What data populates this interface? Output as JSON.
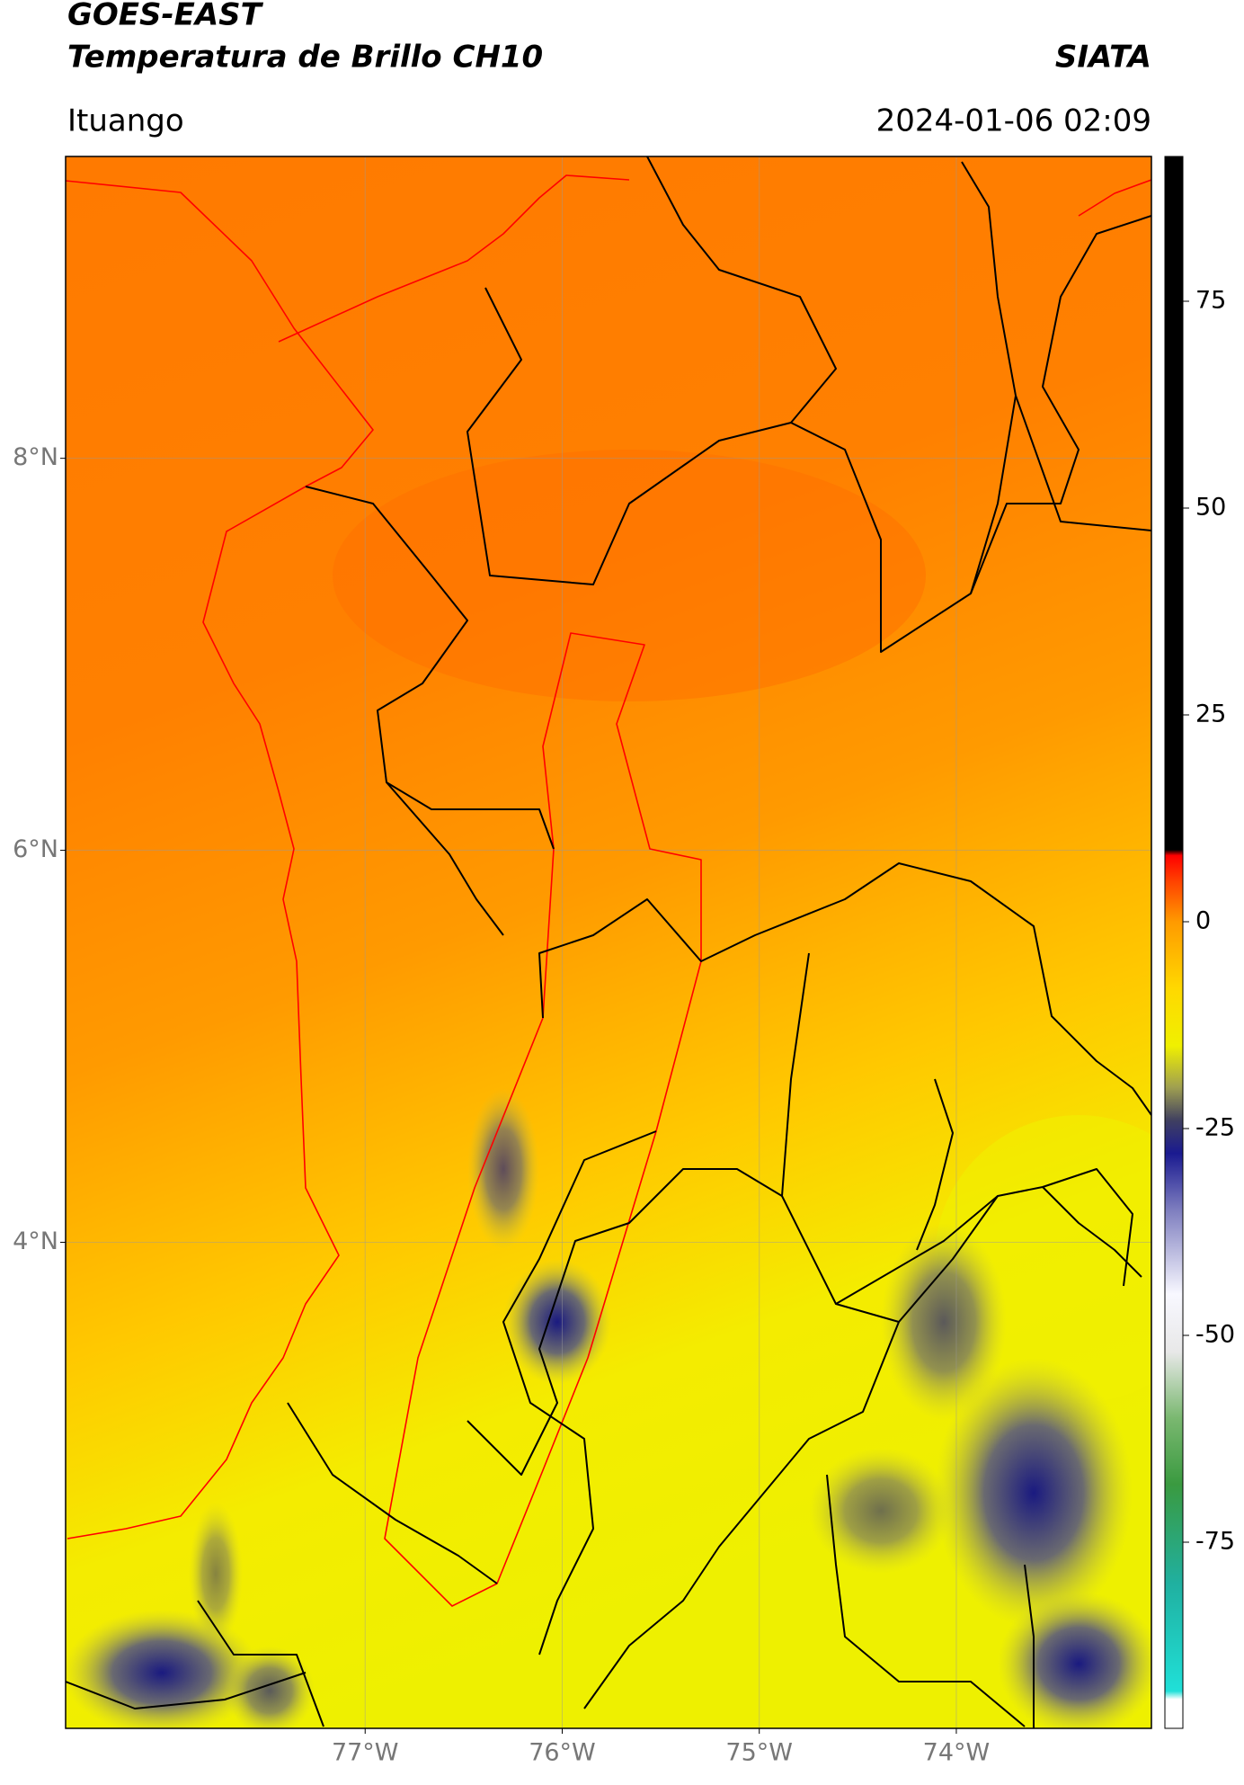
{
  "header": {
    "title": "GOES-EAST",
    "subtitle": "Temperatura de Brillo CH10",
    "brand": "SIATA",
    "location": "Ituango",
    "datetime": "2024-01-06 02:09"
  },
  "map": {
    "xlim": [
      -78.52,
      -73.01
    ],
    "ylim": [
      1.52,
      9.54
    ],
    "xticks": [
      {
        "value": -77,
        "label": "77°W"
      },
      {
        "value": -76,
        "label": "76°W"
      },
      {
        "value": -75,
        "label": "75°W"
      },
      {
        "value": -74,
        "label": "74°W"
      }
    ],
    "yticks": [
      {
        "value": 8,
        "label": "8°N"
      },
      {
        "value": 6,
        "label": "6°N"
      },
      {
        "value": 4,
        "label": "4°N"
      }
    ],
    "grid": true
  },
  "colorbar": {
    "clim": [
      -97.5,
      92.5
    ],
    "ticks": [
      75,
      50,
      25,
      0,
      -25,
      -50,
      -75
    ],
    "stops": [
      [
        -97.5,
        "#ffffff"
      ],
      [
        -94,
        "#ffffff"
      ],
      [
        -93,
        "#20e0d8"
      ],
      [
        -80,
        "#20b0a0"
      ],
      [
        -68,
        "#3a9a40"
      ],
      [
        -60,
        "#7ab870"
      ],
      [
        -52,
        "#e8e8e8"
      ],
      [
        -45,
        "#f8f8ff"
      ],
      [
        -35,
        "#8080c0"
      ],
      [
        -28,
        "#1a1a90"
      ],
      [
        -24,
        "#404060"
      ],
      [
        -20,
        "#a0a050"
      ],
      [
        -15,
        "#f0f000"
      ],
      [
        -8,
        "#ffd800"
      ],
      [
        0,
        "#ff9a00"
      ],
      [
        5,
        "#ff4000"
      ],
      [
        8,
        "#ff0000"
      ],
      [
        8.7,
        "#000000"
      ],
      [
        92.5,
        "#000000"
      ]
    ]
  }
}
